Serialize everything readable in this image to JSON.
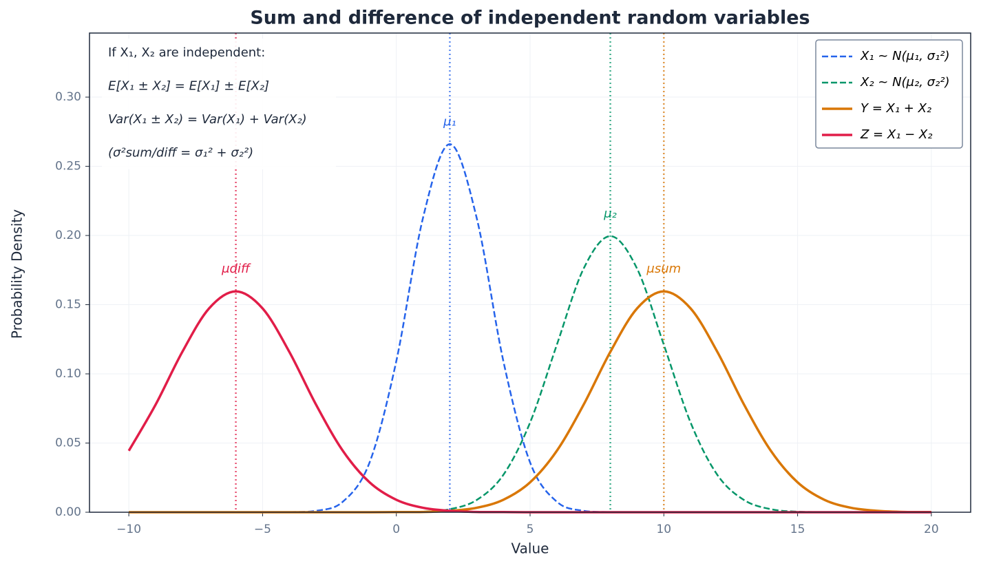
{
  "chart_data": {
    "type": "line",
    "title": "Sum and difference of independent random variables",
    "xlabel": "Value",
    "ylabel": "Probability Density",
    "x": [
      -10,
      -9,
      -8,
      -7,
      -6,
      -5,
      -4,
      -3,
      -2,
      -1,
      0,
      1,
      2,
      3,
      4,
      5,
      6,
      7,
      8,
      9,
      10,
      11,
      12,
      13,
      14,
      15,
      16,
      17,
      18,
      19,
      20
    ],
    "series": [
      {
        "name": "X₁ ~ N(μ₁, σ₁²)",
        "color": "#2563eb",
        "dash": true,
        "values": [
          0,
          0,
          0,
          0,
          0,
          0,
          0.0001,
          0.001,
          0.0076,
          0.036,
          0.1093,
          0.213,
          0.266,
          0.213,
          0.1093,
          0.036,
          0.0076,
          0.001,
          0.0001,
          0,
          0,
          0,
          0,
          0,
          0,
          0,
          0,
          0,
          0,
          0,
          0
        ]
      },
      {
        "name": "X₂ ~ N(μ₂, σ₂²)",
        "color": "#059669",
        "dash": true,
        "values": [
          0,
          0,
          0,
          0,
          0,
          0,
          0,
          0,
          0,
          0,
          0.0001,
          0.0004,
          0.0022,
          0.0088,
          0.027,
          0.0648,
          0.121,
          0.176,
          0.1995,
          0.176,
          0.121,
          0.0648,
          0.027,
          0.0088,
          0.0022,
          0.0004,
          0.0001,
          0,
          0,
          0,
          0
        ]
      },
      {
        "name": "Y = X₁ + X₂",
        "color": "#d97706",
        "dash": false,
        "values": [
          0,
          0,
          0,
          0,
          0,
          0,
          0,
          0,
          0,
          0,
          0.0001,
          0.0002,
          0.001,
          0.0032,
          0.009,
          0.0216,
          0.0444,
          0.0777,
          0.1159,
          0.1473,
          0.1596,
          0.1473,
          0.1159,
          0.0777,
          0.0444,
          0.0216,
          0.009,
          0.0032,
          0.001,
          0.0002,
          0.0001
        ]
      },
      {
        "name": "Z = X₁ − X₂",
        "color": "#e11d48",
        "dash": false,
        "values": [
          0.0444,
          0.0777,
          0.1159,
          0.1473,
          0.1596,
          0.1473,
          0.1159,
          0.0777,
          0.0444,
          0.0216,
          0.009,
          0.0032,
          0.001,
          0.0002,
          0.0001,
          0,
          0,
          0,
          0,
          0,
          0,
          0,
          0,
          0,
          0,
          0,
          0,
          0,
          0,
          0,
          0
        ]
      }
    ],
    "vlines": [
      {
        "value": 2,
        "label": "μ₁",
        "color": "#2563eb"
      },
      {
        "value": 8,
        "label": "μ₂",
        "color": "#059669"
      },
      {
        "value": 10,
        "label": "μsum",
        "color": "#d97706"
      },
      {
        "value": -6,
        "label": "μdiff",
        "color": "#e11d48"
      }
    ],
    "annotation": [
      "If X₁, X₂ are independent:",
      "E[X₁ ± X₂] = E[X₁] ± E[X₂]",
      "Var(X₁ ± X₂) = Var(X₁) + Var(X₂)",
      "(σ²sum/diff = σ₁² + σ₂²)"
    ],
    "xlim": [
      -11.47,
      21.47
    ],
    "ylim": [
      0,
      0.3463
    ],
    "xticks": [
      {
        "value": -10,
        "label": "−10"
      },
      {
        "value": -5,
        "label": "−5"
      },
      0,
      5,
      10,
      15,
      20
    ],
    "yticks": [
      {
        "value": 0,
        "label": "0.00"
      },
      {
        "value": 0.05,
        "label": "0.05"
      },
      {
        "value": 0.1,
        "label": "0.10"
      },
      {
        "value": 0.15,
        "label": "0.15"
      },
      {
        "value": 0.2,
        "label": "0.20"
      },
      {
        "value": 0.25,
        "label": "0.25"
      },
      {
        "value": 0.3,
        "label": "0.30"
      }
    ],
    "grid": true,
    "legend": "upper right"
  }
}
